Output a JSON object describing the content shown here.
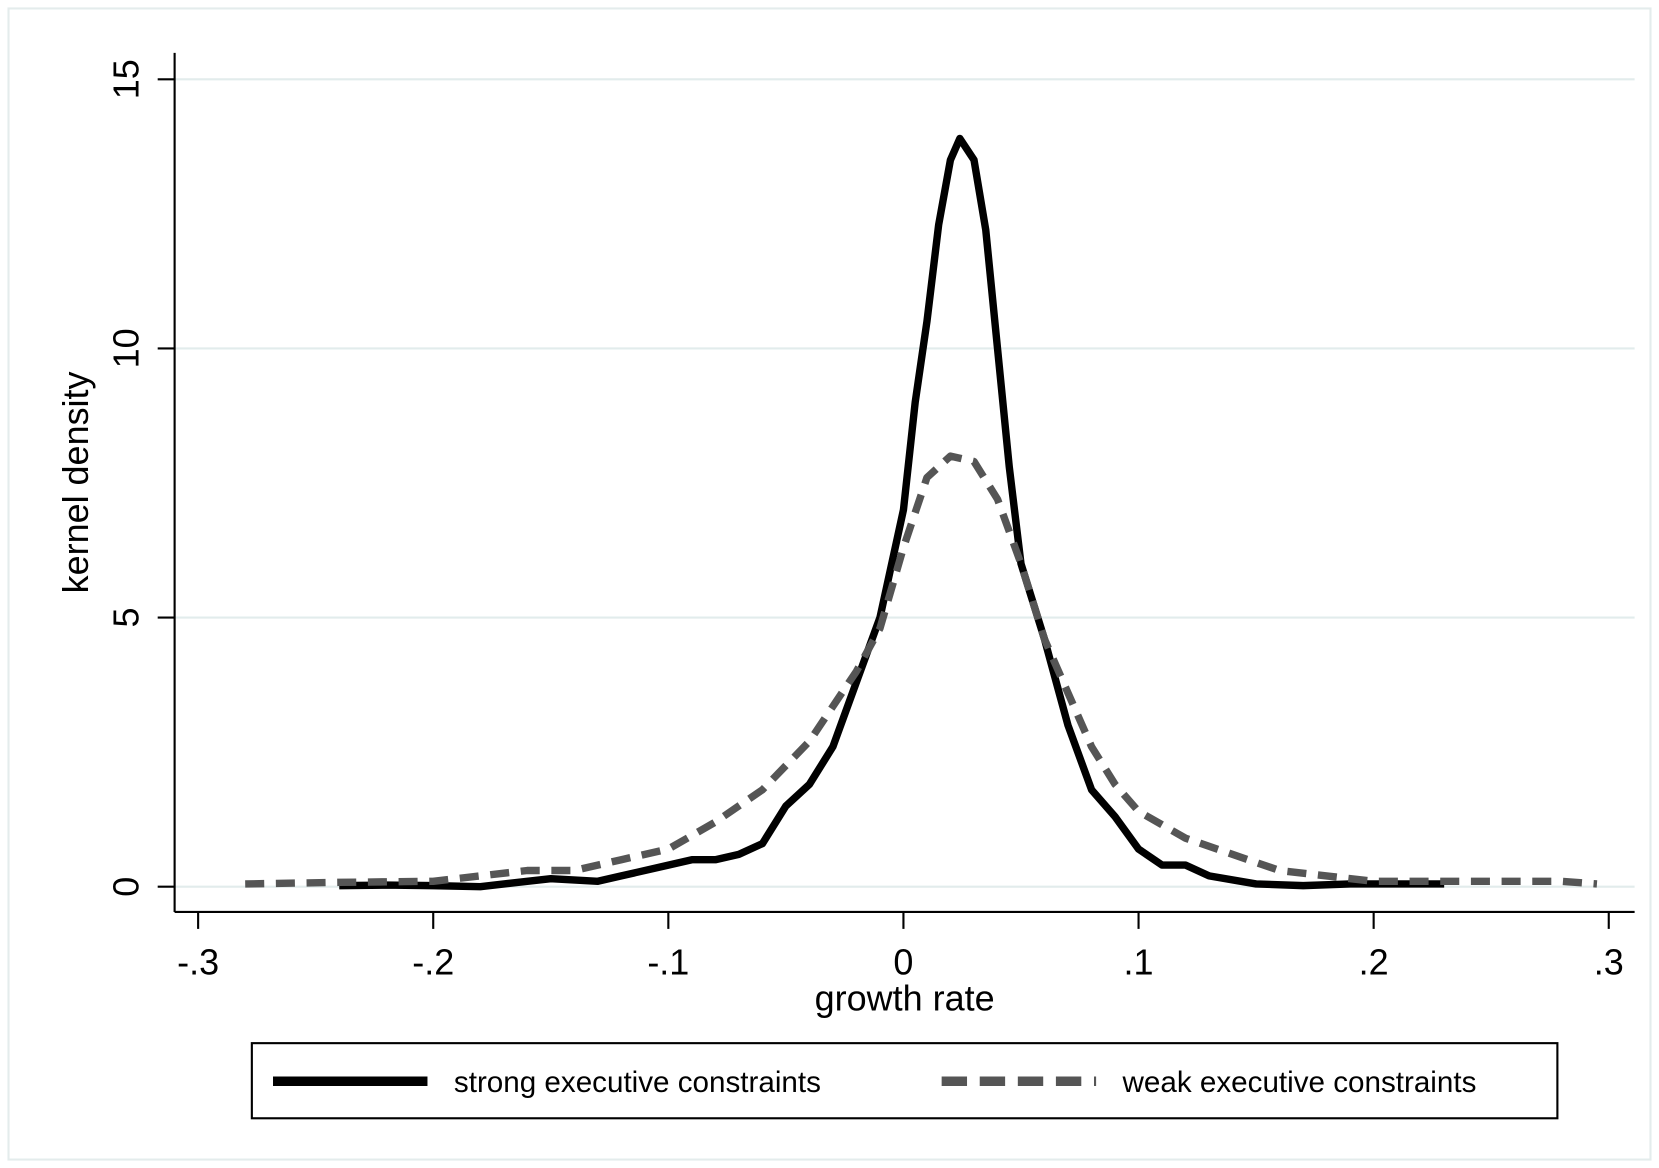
{
  "chart_data": {
    "type": "line",
    "x_label": "growth rate",
    "y_label": "kernel density",
    "xlim": [
      -0.31,
      0.311
    ],
    "ylim": [
      -0.47,
      15.49
    ],
    "xticks": [
      {
        "value": -0.3,
        "label": "-.3"
      },
      {
        "value": -0.2,
        "label": "-.2"
      },
      {
        "value": -0.1,
        "label": "-.1"
      },
      0,
      {
        "value": 0.1,
        "label": ".1"
      },
      {
        "value": 0.2,
        "label": ".2"
      },
      {
        "value": 0.3,
        "label": ".3"
      }
    ],
    "yticks": [
      0,
      5,
      10,
      15
    ],
    "grid": true,
    "legend": "bottom",
    "series": [
      {
        "name": "strong executive constraints",
        "color": "#000000",
        "dash": "solid",
        "x": [
          -0.24,
          -0.22,
          -0.2,
          -0.18,
          -0.16,
          -0.15,
          -0.13,
          -0.12,
          -0.1,
          -0.09,
          -0.08,
          -0.07,
          -0.06,
          -0.05,
          -0.04,
          -0.03,
          -0.02,
          -0.01,
          0,
          0.005,
          0.01,
          0.015,
          0.02,
          0.024,
          0.03,
          0.035,
          0.04,
          0.045,
          0.05,
          0.06,
          0.07,
          0.08,
          0.09,
          0.1,
          0.11,
          0.12,
          0.13,
          0.15,
          0.17,
          0.19,
          0.21,
          0.23
        ],
        "values": [
          0.02,
          0.03,
          0.02,
          0.0,
          0.1,
          0.15,
          0.1,
          0.2,
          0.4,
          0.5,
          0.5,
          0.6,
          0.8,
          1.5,
          1.9,
          2.6,
          3.8,
          5.0,
          7.0,
          9.0,
          10.5,
          12.3,
          13.5,
          13.9,
          13.5,
          12.2,
          10.0,
          7.8,
          6.0,
          4.6,
          3.0,
          1.8,
          1.3,
          0.7,
          0.4,
          0.4,
          0.2,
          0.05,
          0.02,
          0.05,
          0.05,
          0.05
        ]
      },
      {
        "name": "weak executive constraints",
        "color": "#555555",
        "dash": "dashed",
        "x": [
          -0.28,
          -0.24,
          -0.2,
          -0.18,
          -0.16,
          -0.14,
          -0.12,
          -0.1,
          -0.08,
          -0.06,
          -0.04,
          -0.02,
          -0.01,
          0,
          0.01,
          0.02,
          0.03,
          0.04,
          0.05,
          0.06,
          0.07,
          0.08,
          0.09,
          0.1,
          0.12,
          0.14,
          0.16,
          0.18,
          0.2,
          0.24,
          0.28,
          0.295
        ],
        "values": [
          0.05,
          0.08,
          0.1,
          0.2,
          0.3,
          0.3,
          0.5,
          0.7,
          1.2,
          1.8,
          2.7,
          4.0,
          4.8,
          6.3,
          7.6,
          8.0,
          7.9,
          7.2,
          6.0,
          4.6,
          3.6,
          2.6,
          1.9,
          1.4,
          0.9,
          0.6,
          0.3,
          0.2,
          0.1,
          0.1,
          0.1,
          0.05
        ]
      }
    ]
  }
}
